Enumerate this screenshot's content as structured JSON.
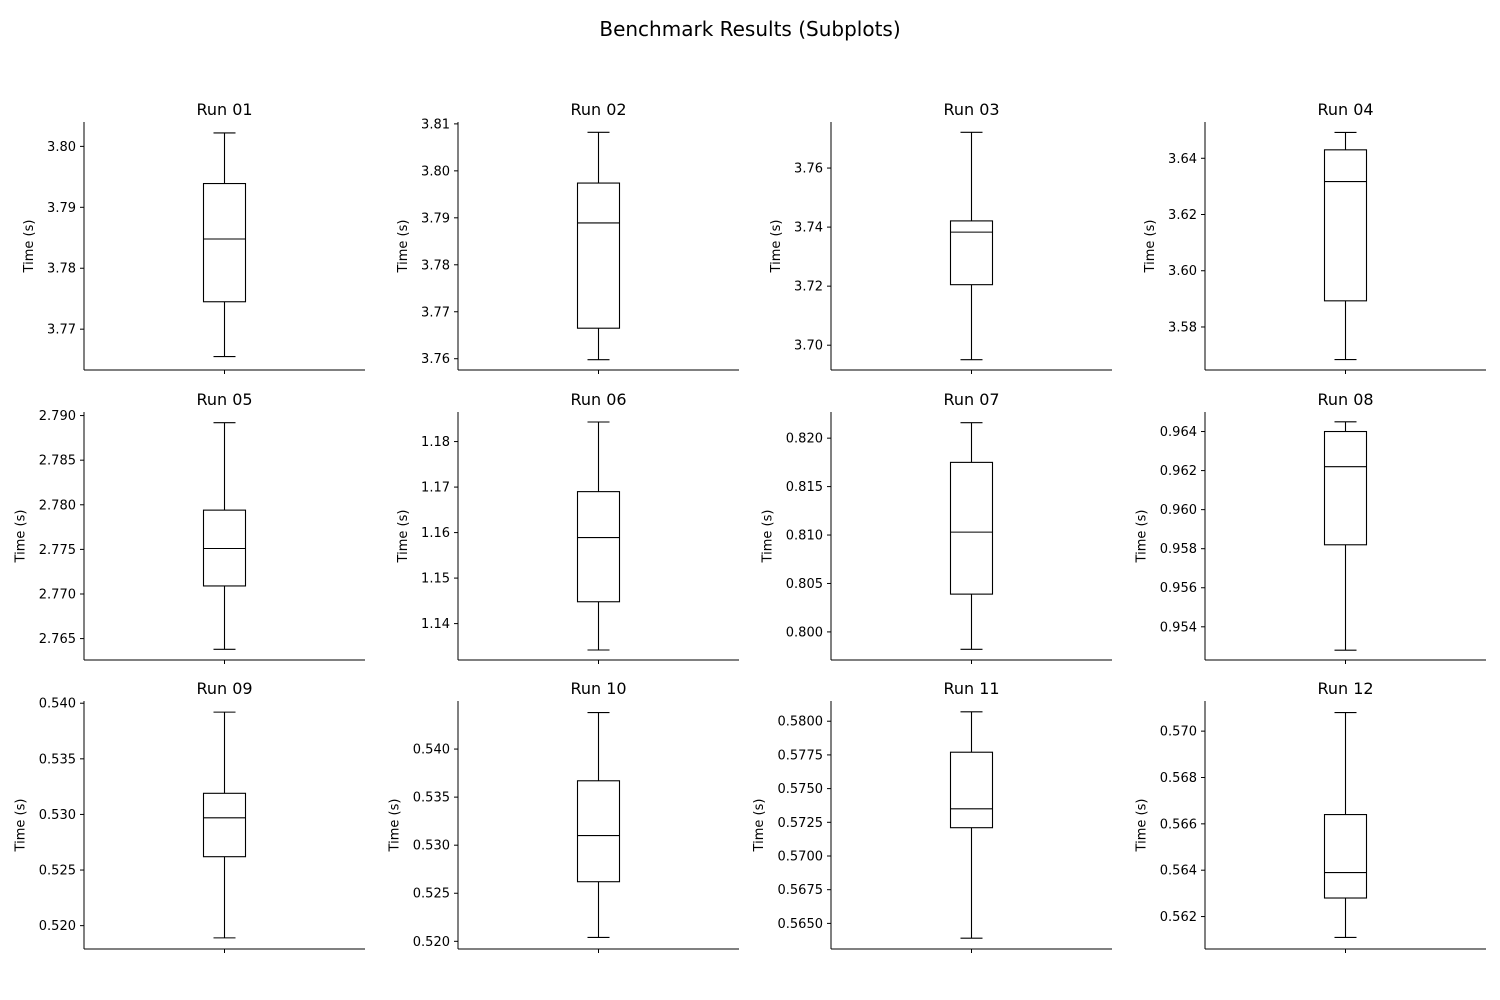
{
  "chart_data": {
    "type": "box",
    "title": "Benchmark Results (Subplots)",
    "ylabel": "Time (s)",
    "grid": false,
    "legend": "none",
    "subplots": [
      {
        "title": "Run 01",
        "stats": {
          "whislo": 3.7655,
          "q1": 3.7745,
          "median": 3.7848,
          "q3": 3.7939,
          "whishi": 3.8022
        },
        "ylim": [
          3.7633,
          3.804
        ],
        "yticks": [
          3.77,
          3.78,
          3.79,
          3.8
        ],
        "ytick_labels": [
          "3.77",
          "3.78",
          "3.79",
          "3.80"
        ]
      },
      {
        "title": "Run 02",
        "stats": {
          "whislo": 3.7598,
          "q1": 3.7665,
          "median": 3.7889,
          "q3": 3.7974,
          "whishi": 3.8082
        },
        "ylim": [
          3.7576,
          3.8104
        ],
        "yticks": [
          3.76,
          3.77,
          3.78,
          3.79,
          3.8,
          3.81
        ],
        "ytick_labels": [
          "3.76",
          "3.77",
          "3.78",
          "3.79",
          "3.80",
          "3.81"
        ]
      },
      {
        "title": "Run 03",
        "stats": {
          "whislo": 3.6951,
          "q1": 3.7205,
          "median": 3.7383,
          "q3": 3.7421,
          "whishi": 3.7721
        },
        "ylim": [
          3.6916,
          3.7756
        ],
        "yticks": [
          3.7,
          3.72,
          3.74,
          3.76
        ],
        "ytick_labels": [
          "3.70",
          "3.72",
          "3.74",
          "3.76"
        ]
      },
      {
        "title": "Run 04",
        "stats": {
          "whislo": 3.5684,
          "q1": 3.5893,
          "median": 3.6317,
          "q3": 3.643,
          "whishi": 3.6492
        },
        "ylim": [
          3.5647,
          3.6529
        ],
        "yticks": [
          3.58,
          3.6,
          3.62,
          3.64
        ],
        "ytick_labels": [
          "3.58",
          "3.60",
          "3.62",
          "3.64"
        ]
      },
      {
        "title": "Run 05",
        "stats": {
          "whislo": 2.7638,
          "q1": 2.7709,
          "median": 2.7751,
          "q3": 2.7794,
          "whishi": 2.7892
        },
        "ylim": [
          2.7626,
          2.7904
        ],
        "yticks": [
          2.765,
          2.77,
          2.775,
          2.78,
          2.785,
          2.79
        ],
        "ytick_labels": [
          "2.765",
          "2.770",
          "2.775",
          "2.780",
          "2.785",
          "2.790"
        ]
      },
      {
        "title": "Run 06",
        "stats": {
          "whislo": 1.1342,
          "q1": 1.1448,
          "median": 1.1589,
          "q3": 1.169,
          "whishi": 1.1843
        },
        "ylim": [
          1.132,
          1.1865
        ],
        "yticks": [
          1.14,
          1.15,
          1.16,
          1.17,
          1.18
        ],
        "ytick_labels": [
          "1.14",
          "1.15",
          "1.16",
          "1.17",
          "1.18"
        ]
      },
      {
        "title": "Run 07",
        "stats": {
          "whislo": 0.7982,
          "q1": 0.8039,
          "median": 0.8103,
          "q3": 0.8175,
          "whishi": 0.8216
        },
        "ylim": [
          0.7971,
          0.8227
        ],
        "yticks": [
          0.8,
          0.805,
          0.81,
          0.815,
          0.82
        ],
        "ytick_labels": [
          "0.800",
          "0.805",
          "0.810",
          "0.815",
          "0.820"
        ]
      },
      {
        "title": "Run 08",
        "stats": {
          "whislo": 0.9528,
          "q1": 0.9582,
          "median": 0.9622,
          "q3": 0.964,
          "whishi": 0.9645
        },
        "ylim": [
          0.9523,
          0.965
        ],
        "yticks": [
          0.954,
          0.956,
          0.958,
          0.96,
          0.962,
          0.964
        ],
        "ytick_labels": [
          "0.954",
          "0.956",
          "0.958",
          "0.960",
          "0.962",
          "0.964"
        ]
      },
      {
        "title": "Run 09",
        "stats": {
          "whislo": 0.5189,
          "q1": 0.5262,
          "median": 0.5297,
          "q3": 0.5319,
          "whishi": 0.5392
        },
        "ylim": [
          0.5179,
          0.5402
        ],
        "yticks": [
          0.52,
          0.525,
          0.53,
          0.535,
          0.54
        ],
        "ytick_labels": [
          "0.520",
          "0.525",
          "0.530",
          "0.535",
          "0.540"
        ]
      },
      {
        "title": "Run 10",
        "stats": {
          "whislo": 0.5204,
          "q1": 0.5262,
          "median": 0.531,
          "q3": 0.5367,
          "whishi": 0.5438
        },
        "ylim": [
          0.5192,
          0.545
        ],
        "yticks": [
          0.52,
          0.525,
          0.53,
          0.535,
          0.54
        ],
        "ytick_labels": [
          "0.520",
          "0.525",
          "0.530",
          "0.535",
          "0.540"
        ]
      },
      {
        "title": "Run 11",
        "stats": {
          "whislo": 0.5639,
          "q1": 0.5721,
          "median": 0.5735,
          "q3": 0.5777,
          "whishi": 0.5807
        },
        "ylim": [
          0.5631,
          0.5815
        ],
        "yticks": [
          0.565,
          0.5675,
          0.57,
          0.5725,
          0.575,
          0.5775,
          0.58
        ],
        "ytick_labels": [
          "0.5650",
          "0.5675",
          "0.5700",
          "0.5725",
          "0.5750",
          "0.5775",
          "0.5800"
        ]
      },
      {
        "title": "Run 12",
        "stats": {
          "whislo": 0.5611,
          "q1": 0.5628,
          "median": 0.5639,
          "q3": 0.5664,
          "whishi": 0.5708
        },
        "ylim": [
          0.5606,
          0.5713
        ],
        "yticks": [
          0.562,
          0.564,
          0.566,
          0.568,
          0.57
        ],
        "ytick_labels": [
          "0.562",
          "0.564",
          "0.566",
          "0.568",
          "0.570"
        ]
      }
    ]
  }
}
